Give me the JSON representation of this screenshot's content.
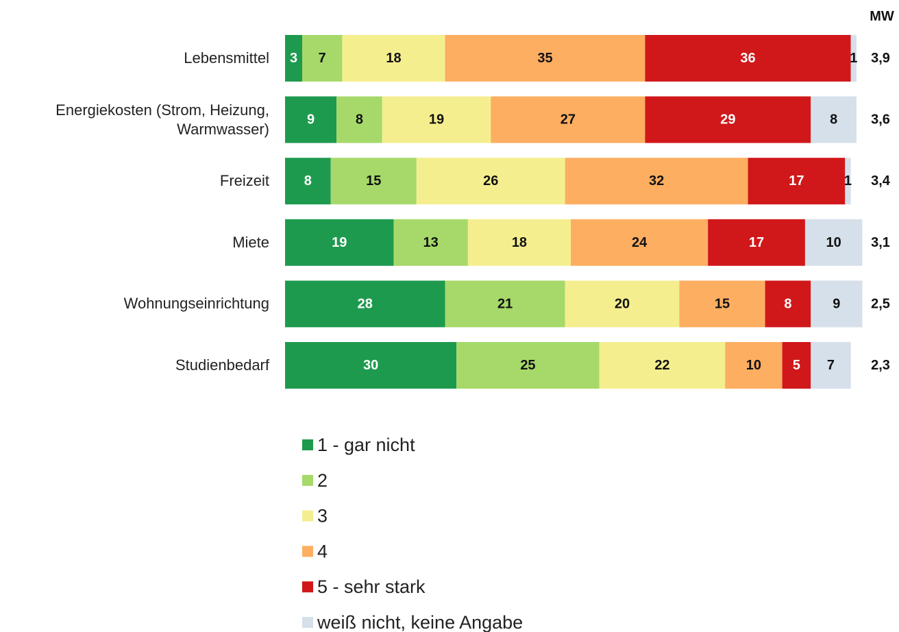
{
  "chart_data": {
    "type": "bar",
    "orientation": "horizontal",
    "stacked": true,
    "categories": [
      "Lebensmittel",
      "Energiekosten (Strom, Heizung, Warmwasser)",
      "Freizeit",
      "Miete",
      "Wohnungseinrichtung",
      "Studienbedarf"
    ],
    "series": [
      {
        "name": "1 - gar nicht",
        "color": "#1e9a4e",
        "values": [
          3,
          9,
          8,
          19,
          28,
          30
        ]
      },
      {
        "name": "2",
        "color": "#a6d96a",
        "values": [
          7,
          8,
          15,
          13,
          21,
          25
        ]
      },
      {
        "name": "3",
        "color": "#f5ee8f",
        "values": [
          18,
          19,
          26,
          18,
          20,
          22
        ]
      },
      {
        "name": "4",
        "color": "#fdae61",
        "values": [
          35,
          27,
          32,
          24,
          15,
          10
        ]
      },
      {
        "name": "5 - sehr stark",
        "color": "#d0181a",
        "values": [
          36,
          29,
          17,
          17,
          8,
          5
        ]
      },
      {
        "name": "weiß nicht, keine Angabe",
        "color": "#d6e0ea",
        "values": [
          1,
          8,
          1,
          10,
          9,
          7
        ]
      }
    ],
    "xlim": [
      0,
      100
    ],
    "mw": {
      "label": "MW",
      "values": [
        3.9,
        3.6,
        3.4,
        3.1,
        2.5,
        2.3
      ],
      "value_labels": [
        "3,9",
        "3,6",
        "3,4",
        "3,1",
        "2,5",
        "2,3"
      ]
    }
  }
}
